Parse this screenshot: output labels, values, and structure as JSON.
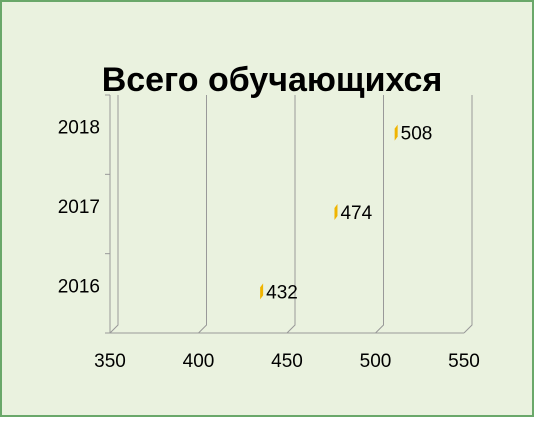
{
  "chart_data": {
    "type": "bar",
    "orientation": "horizontal",
    "title": "Всего обучающихся",
    "categories": [
      "2016",
      "2017",
      "2018"
    ],
    "values": [
      432,
      474,
      508
    ],
    "color": "#f0b400",
    "xlim": [
      350,
      550
    ],
    "xticks": [
      350,
      400,
      450,
      500,
      550
    ],
    "grid": true
  }
}
